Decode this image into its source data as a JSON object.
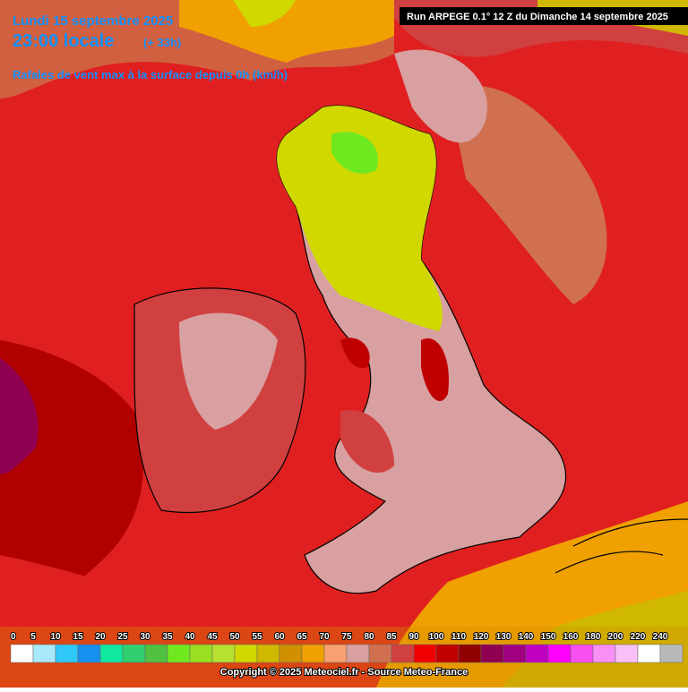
{
  "header": {
    "date": "Lundi 15 septembre 2025",
    "time": "23:00 locale",
    "offset": "(+ 33h)",
    "parameter": "Rafales de vent max à la surface depuis 0h (km/h)",
    "run": "Run ARPEGE 0.1° 12 Z du Dimanche 14 septembre 2025"
  },
  "legend": [
    {
      "label": 0,
      "color": "#ffffff"
    },
    {
      "label": 5,
      "color": "#a8e8f8"
    },
    {
      "label": 10,
      "color": "#30c8f8"
    },
    {
      "label": 15,
      "color": "#1890f0"
    },
    {
      "label": 20,
      "color": "#10e8a0"
    },
    {
      "label": 25,
      "color": "#30d070"
    },
    {
      "label": 30,
      "color": "#50c040"
    },
    {
      "label": 35,
      "color": "#70e820"
    },
    {
      "label": 40,
      "color": "#98e020"
    },
    {
      "label": 45,
      "color": "#b8e030"
    },
    {
      "label": 50,
      "color": "#d0d800"
    },
    {
      "label": 55,
      "color": "#d0b800"
    },
    {
      "label": 60,
      "color": "#d09000"
    },
    {
      "label": 65,
      "color": "#f0a000"
    },
    {
      "label": 70,
      "color": "#f8a070"
    },
    {
      "label": 75,
      "color": "#d8a0a0"
    },
    {
      "label": 80,
      "color": "#d07050"
    },
    {
      "label": 85,
      "color": "#d04040"
    },
    {
      "label": 90,
      "color": "#f00000"
    },
    {
      "label": 100,
      "color": "#c00000"
    },
    {
      "label": 110,
      "color": "#900000"
    },
    {
      "label": 120,
      "color": "#900050"
    },
    {
      "label": 130,
      "color": "#a00080"
    },
    {
      "label": 140,
      "color": "#c000c0"
    },
    {
      "label": 150,
      "color": "#ff00ff"
    },
    {
      "label": 160,
      "color": "#f850f0"
    },
    {
      "label": 180,
      "color": "#f890f8"
    },
    {
      "label": 200,
      "color": "#f8c0f8"
    },
    {
      "label": 220,
      "color": "#ffffff"
    },
    {
      "label": 240,
      "color": "#b8b8b8"
    }
  ],
  "copyright": "Copyright © 2025 Meteociel.fr - Source Meteo-France"
}
